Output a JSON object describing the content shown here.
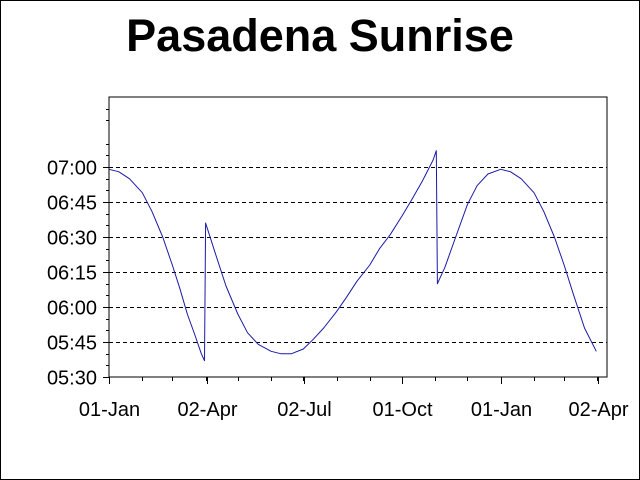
{
  "chart_data": {
    "type": "line",
    "title": "Pasadena Sunrise",
    "xlabel": "",
    "ylabel": "",
    "x_tick_labels": [
      "01-Jan",
      "02-Apr",
      "02-Jul",
      "01-Oct",
      "01-Jan",
      "02-Apr"
    ],
    "y_tick_labels": [
      "05:30",
      "05:45",
      "06:00",
      "06:15",
      "06:30",
      "06:45",
      "07:00"
    ],
    "xlim": [
      "2009-01-01",
      "2010-04-10"
    ],
    "ylim": [
      "05:30",
      "07:30"
    ],
    "grid": "horizontal dashed",
    "legend": "none",
    "series": [
      {
        "color": "#1a1aa6",
        "points": [
          [
            "2009-01-01",
            "06:59"
          ],
          [
            "2009-01-10",
            "06:58"
          ],
          [
            "2009-01-20",
            "06:55"
          ],
          [
            "2009-02-01",
            "06:49"
          ],
          [
            "2009-02-10",
            "06:41"
          ],
          [
            "2009-02-20",
            "06:30"
          ],
          [
            "2009-03-01",
            "06:18"
          ],
          [
            "2009-03-08",
            "06:08"
          ],
          [
            "2009-03-15",
            "05:57"
          ],
          [
            "2009-03-22",
            "05:48"
          ],
          [
            "2009-03-28",
            "05:40"
          ],
          [
            "2009-03-31",
            "05:37"
          ],
          [
            "2009-04-01",
            "06:36"
          ],
          [
            "2009-04-10",
            "06:23"
          ],
          [
            "2009-04-20",
            "06:09"
          ],
          [
            "2009-05-01",
            "05:57"
          ],
          [
            "2009-05-10",
            "05:49"
          ],
          [
            "2009-05-20",
            "05:44"
          ],
          [
            "2009-06-01",
            "05:41"
          ],
          [
            "2009-06-10",
            "05:40"
          ],
          [
            "2009-06-20",
            "05:40"
          ],
          [
            "2009-07-01",
            "05:42"
          ],
          [
            "2009-07-10",
            "05:46"
          ],
          [
            "2009-07-20",
            "05:51"
          ],
          [
            "2009-08-01",
            "05:58"
          ],
          [
            "2009-08-10",
            "06:04"
          ],
          [
            "2009-08-20",
            "06:11"
          ],
          [
            "2009-09-01",
            "06:18"
          ],
          [
            "2009-09-10",
            "06:25"
          ],
          [
            "2009-09-20",
            "06:31"
          ],
          [
            "2009-10-01",
            "06:39"
          ],
          [
            "2009-10-10",
            "06:46"
          ],
          [
            "2009-10-20",
            "06:54"
          ],
          [
            "2009-10-30",
            "07:03"
          ],
          [
            "2009-11-02",
            "07:07"
          ],
          [
            "2009-11-03",
            "06:10"
          ],
          [
            "2009-11-10",
            "06:17"
          ],
          [
            "2009-11-20",
            "06:30"
          ],
          [
            "2009-12-01",
            "06:44"
          ],
          [
            "2009-12-10",
            "06:52"
          ],
          [
            "2009-12-20",
            "06:57"
          ],
          [
            "2010-01-01",
            "06:59"
          ],
          [
            "2010-01-10",
            "06:58"
          ],
          [
            "2010-01-20",
            "06:55"
          ],
          [
            "2010-02-01",
            "06:49"
          ],
          [
            "2010-02-10",
            "06:41"
          ],
          [
            "2010-02-20",
            "06:30"
          ],
          [
            "2010-03-01",
            "06:18"
          ],
          [
            "2010-03-10",
            "06:05"
          ],
          [
            "2010-03-20",
            "05:51"
          ],
          [
            "2010-03-31",
            "05:41"
          ]
        ]
      }
    ]
  }
}
